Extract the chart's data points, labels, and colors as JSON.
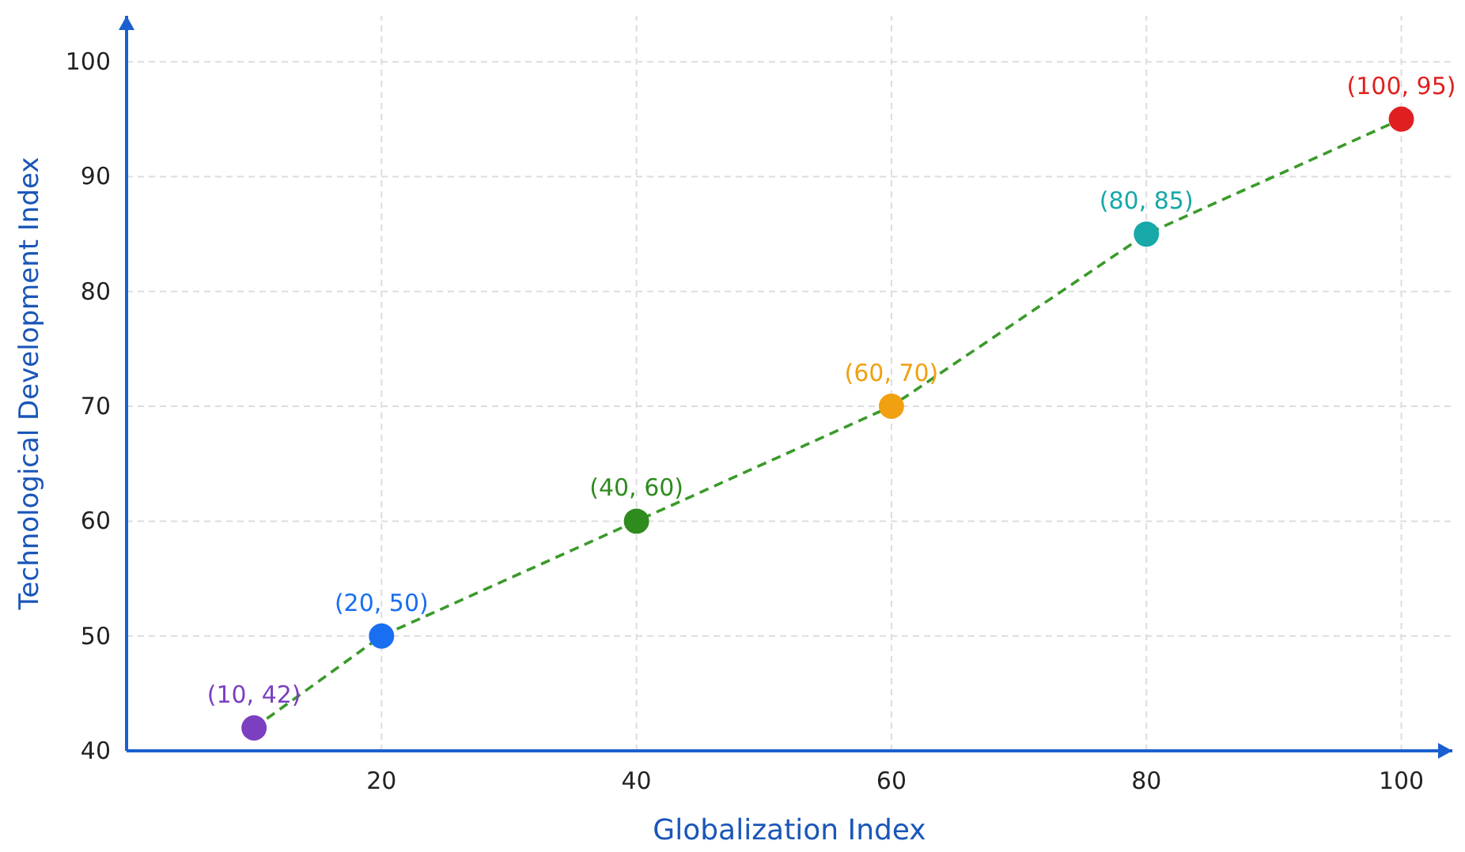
{
  "chart_data": {
    "type": "scatter",
    "xlabel": "Globalization Index",
    "ylabel": "Technological Development Index",
    "xlim": [
      0,
      104
    ],
    "xticks": [
      20,
      40,
      60,
      80,
      100
    ],
    "ylim": [
      40,
      104
    ],
    "yticks": [
      40,
      50,
      60,
      70,
      80,
      90,
      100
    ],
    "grid": true,
    "series": [
      {
        "type": "line",
        "x": [
          10,
          20,
          40,
          60,
          80,
          100
        ],
        "values": [
          42,
          50,
          60,
          70,
          85,
          95
        ],
        "color": "#3a9a2a",
        "line_style": "dashed",
        "marker": "none"
      },
      {
        "marker": "circle",
        "x": [
          10,
          20,
          40,
          60,
          80,
          100
        ],
        "values": [
          42,
          50,
          60,
          70,
          85,
          95
        ],
        "colors": [
          "#7b3fc0",
          "#1a6ef0",
          "#2e8b1e",
          "#f0a010",
          "#17a8a8",
          "#e02020"
        ],
        "value_labels": [
          "(10, 42)",
          "(20, 50)",
          "(40, 60)",
          "(60, 70)",
          "(80, 85)",
          "(100, 95)"
        ]
      }
    ]
  }
}
